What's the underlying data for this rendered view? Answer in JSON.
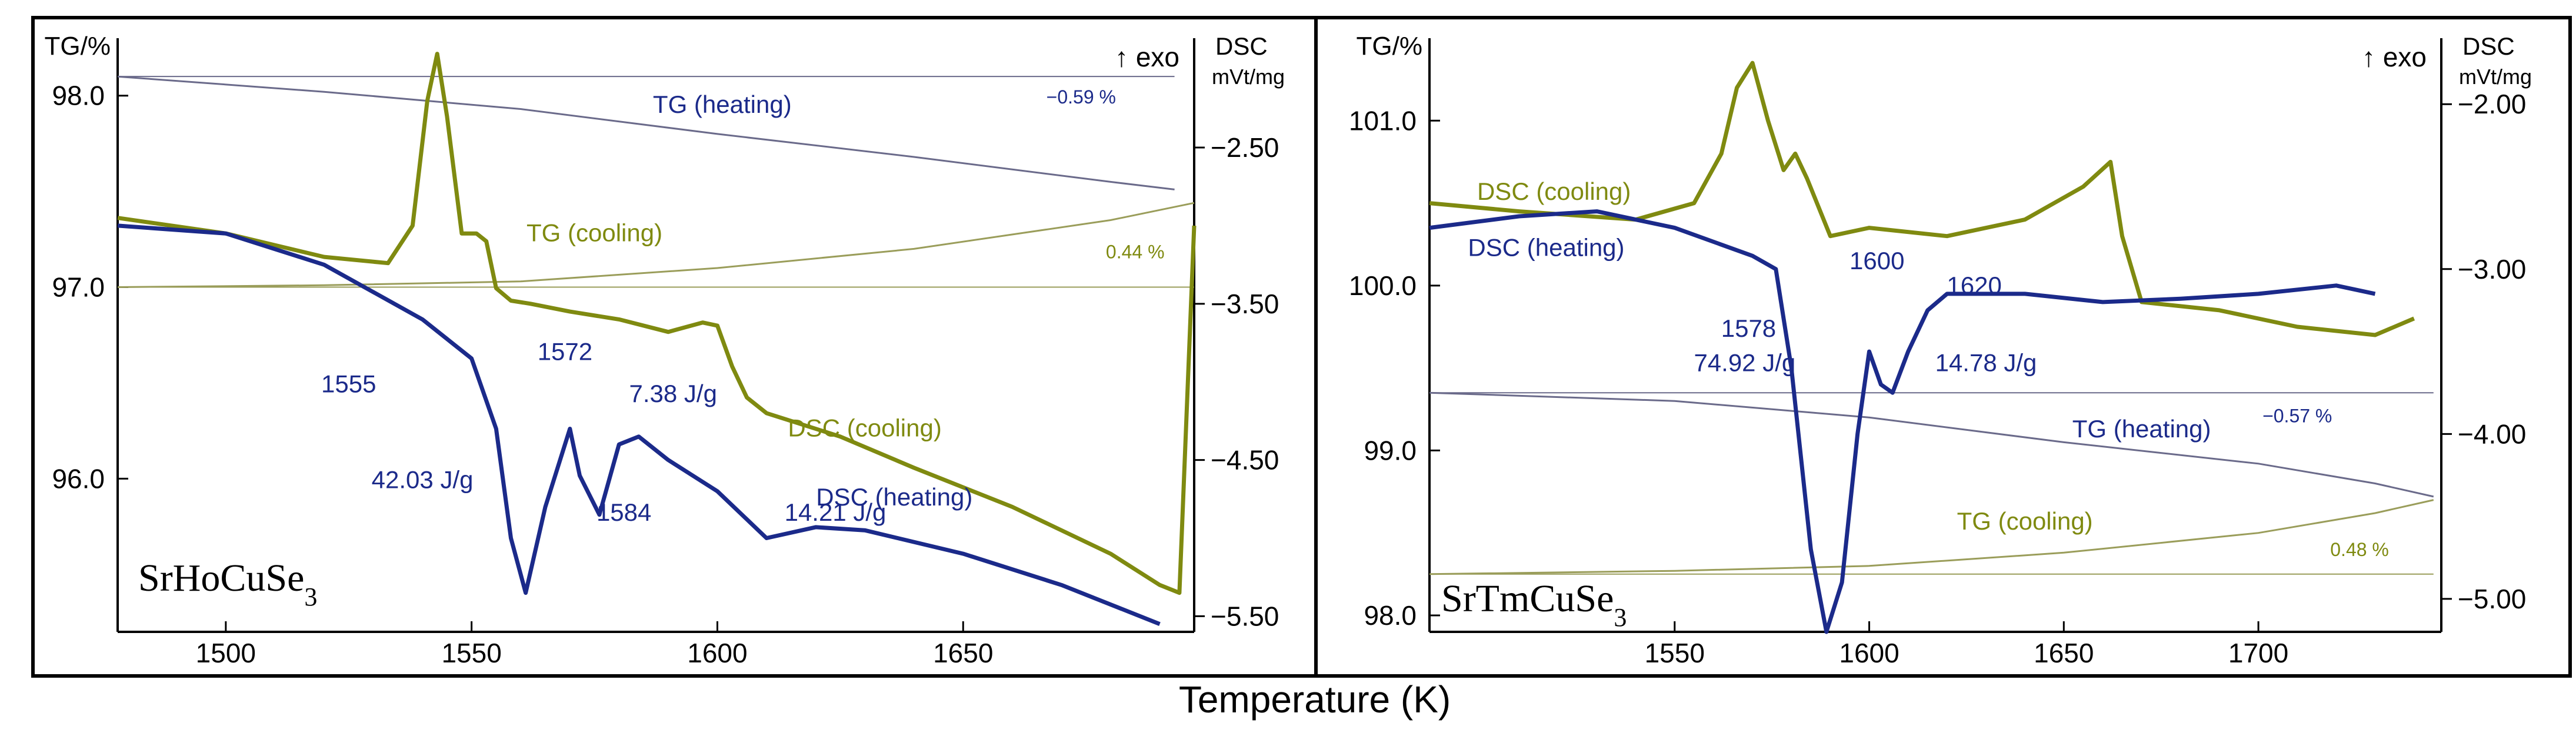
{
  "figure": {
    "xlabel": "Temperature (K)",
    "colors": {
      "heating": "#1b2a8a",
      "cooling": "#7f8a10",
      "axis": "#000000",
      "tg_heat": "#6a6a8a",
      "tg_cool": "#9a9d5a"
    }
  },
  "chart_data": [
    {
      "type": "line",
      "sample_name": "SrHoCuSe",
      "sample_sub": "3",
      "x_range": [
        1478,
        1697
      ],
      "x_ticks": [
        1500,
        1550,
        1600,
        1650
      ],
      "tg_axis": {
        "label": "TG/%",
        "range": [
          95.2,
          98.3
        ],
        "ticks": [
          96.0,
          97.0,
          98.0
        ],
        "tick_labels": [
          "96.0",
          "97.0",
          "98.0"
        ]
      },
      "dsc_axis": {
        "label": "DSC",
        "unit": "mVt/mg",
        "range": [
          -5.6,
          -1.8
        ],
        "ticks": [
          -2.5,
          -3.5,
          -4.5,
          -5.5
        ],
        "tick_labels": [
          "−2.50",
          "−3.50",
          "−4.50",
          "−5.50"
        ]
      },
      "exo_label": "↑ exo",
      "series": [
        {
          "name": "TG (heating)",
          "axis": "tg",
          "x": [
            1478,
            1520,
            1560,
            1600,
            1640,
            1680,
            1693
          ],
          "y": [
            98.1,
            98.02,
            97.93,
            97.8,
            97.68,
            97.55,
            97.51
          ]
        },
        {
          "name": "TG (cooling)",
          "axis": "tg",
          "x": [
            1478,
            1520,
            1560,
            1600,
            1640,
            1680,
            1697
          ],
          "y": [
            97.0,
            97.01,
            97.03,
            97.1,
            97.2,
            97.35,
            97.44
          ]
        },
        {
          "name": "DSC (cooling)",
          "axis": "dsc",
          "x": [
            1478,
            1500,
            1520,
            1533,
            1538,
            1541,
            1543,
            1545,
            1548,
            1551,
            1553,
            1555,
            1558,
            1562,
            1570,
            1580,
            1590,
            1597,
            1600,
            1603,
            1606,
            1610,
            1625,
            1640,
            1660,
            1680,
            1690,
            1694,
            1697
          ],
          "y": [
            -2.95,
            -3.05,
            -3.2,
            -3.24,
            -3.0,
            -2.2,
            -1.9,
            -2.3,
            -3.05,
            -3.05,
            -3.1,
            -3.4,
            -3.48,
            -3.5,
            -3.55,
            -3.6,
            -3.68,
            -3.62,
            -3.64,
            -3.9,
            -4.1,
            -4.2,
            -4.35,
            -4.55,
            -4.8,
            -5.1,
            -5.3,
            -5.35,
            -3.0
          ]
        },
        {
          "name": "DSC (heating)",
          "axis": "dsc",
          "x": [
            1478,
            1500,
            1520,
            1540,
            1550,
            1555,
            1558,
            1561,
            1565,
            1570,
            1572,
            1576,
            1580,
            1584,
            1590,
            1600,
            1610,
            1620,
            1630,
            1650,
            1670,
            1690
          ],
          "y": [
            -3.0,
            -3.05,
            -3.25,
            -3.6,
            -3.85,
            -4.3,
            -5.0,
            -5.35,
            -4.8,
            -4.3,
            -4.6,
            -4.85,
            -4.4,
            -4.35,
            -4.5,
            -4.7,
            -5.0,
            -4.93,
            -4.95,
            -5.1,
            -5.3,
            -5.55
          ]
        }
      ],
      "annotations": [
        {
          "text": "1555",
          "x": 1525,
          "y": 96.45
        },
        {
          "text": "1572",
          "x": 1569,
          "y": 96.62
        },
        {
          "text": "1584",
          "x": 1581,
          "y": 95.78
        },
        {
          "text": "42.03 J/g",
          "x": 1540,
          "y": 95.95
        },
        {
          "text": "7.38 J/g",
          "x": 1591,
          "y": 96.4
        },
        {
          "text": "14.21 J/g",
          "x": 1624,
          "y": 95.78
        },
        {
          "text": "TG (heating)",
          "x": 1601,
          "y": 97.91
        },
        {
          "text": "TG (cooling)",
          "x": 1575,
          "y": 97.24
        },
        {
          "text": "DSC (cooling)",
          "x": 1630,
          "y": 96.22
        },
        {
          "text": "DSC (heating)",
          "x": 1636,
          "y": 95.86
        },
        {
          "text": "−0.59 %",
          "x": 1674,
          "y": 97.96
        },
        {
          "text": "0.44 %",
          "x": 1685,
          "y": 97.15
        }
      ]
    },
    {
      "type": "line",
      "sample_name": "SrTmCuSe",
      "sample_sub": "3",
      "x_range": [
        1487,
        1747
      ],
      "x_ticks": [
        1550,
        1600,
        1650,
        1700
      ],
      "tg_axis": {
        "label": "TG/%",
        "range": [
          97.9,
          101.5
        ],
        "ticks": [
          98.0,
          99.0,
          100.0,
          101.0
        ],
        "tick_labels": [
          "98.0",
          "99.0",
          "100.0",
          "101.0"
        ]
      },
      "dsc_axis": {
        "label": "DSC",
        "unit": "mVt/mg",
        "range": [
          -5.2,
          -1.6
        ],
        "ticks": [
          -2.0,
          -3.0,
          -4.0,
          -5.0
        ],
        "tick_labels": [
          "−2.00",
          "−3.00",
          "−4.00",
          "−5.00"
        ]
      },
      "exo_label": "↑ exo",
      "series": [
        {
          "name": "TG (heating)",
          "axis": "tg",
          "x": [
            1487,
            1550,
            1600,
            1650,
            1700,
            1730,
            1745
          ],
          "y": [
            99.35,
            99.3,
            99.2,
            99.05,
            98.92,
            98.8,
            98.72
          ]
        },
        {
          "name": "TG (cooling)",
          "axis": "tg",
          "x": [
            1487,
            1550,
            1600,
            1650,
            1700,
            1730,
            1745
          ],
          "y": [
            98.25,
            98.27,
            98.3,
            98.38,
            98.5,
            98.62,
            98.7
          ]
        },
        {
          "name": "DSC (cooling)",
          "axis": "dsc",
          "x": [
            1487,
            1510,
            1540,
            1555,
            1562,
            1566,
            1570,
            1574,
            1578,
            1581,
            1584,
            1590,
            1600,
            1620,
            1640,
            1655,
            1662,
            1665,
            1670,
            1690,
            1710,
            1730,
            1740
          ],
          "y": [
            -2.6,
            -2.65,
            -2.7,
            -2.6,
            -2.3,
            -1.9,
            -1.75,
            -2.1,
            -2.4,
            -2.3,
            -2.45,
            -2.8,
            -2.75,
            -2.8,
            -2.7,
            -2.5,
            -2.35,
            -2.8,
            -3.2,
            -3.25,
            -3.35,
            -3.4,
            -3.3
          ]
        },
        {
          "name": "DSC (heating)",
          "axis": "dsc",
          "x": [
            1487,
            1510,
            1530,
            1550,
            1570,
            1576,
            1580,
            1585,
            1589,
            1593,
            1597,
            1600,
            1603,
            1606,
            1610,
            1615,
            1620,
            1640,
            1660,
            1680,
            1700,
            1720,
            1730
          ],
          "y": [
            -2.75,
            -2.68,
            -2.65,
            -2.75,
            -2.92,
            -3.0,
            -3.6,
            -4.7,
            -5.2,
            -4.9,
            -4.0,
            -3.5,
            -3.7,
            -3.75,
            -3.5,
            -3.25,
            -3.15,
            -3.15,
            -3.2,
            -3.18,
            -3.15,
            -3.1,
            -3.15
          ]
        }
      ],
      "annotations": [
        {
          "text": "1578",
          "x": 1569,
          "y": 99.69
        },
        {
          "text": "1600",
          "x": 1602,
          "y": 100.1
        },
        {
          "text": "1620",
          "x": 1627,
          "y": 99.95
        },
        {
          "text": "74.92 J/g",
          "x": 1568,
          "y": 99.48
        },
        {
          "text": "14.78 J/g",
          "x": 1630,
          "y": 99.48
        },
        {
          "text": "DSC (cooling)",
          "x": 1519,
          "y": 100.52
        },
        {
          "text": "DSC (heating)",
          "x": 1517,
          "y": 100.18
        },
        {
          "text": "TG (heating)",
          "x": 1670,
          "y": 99.08
        },
        {
          "text": "TG (cooling)",
          "x": 1640,
          "y": 98.52
        },
        {
          "text": "−0.57 %",
          "x": 1710,
          "y": 99.17
        },
        {
          "text": "0.48 %",
          "x": 1726,
          "y": 98.36
        }
      ]
    }
  ]
}
